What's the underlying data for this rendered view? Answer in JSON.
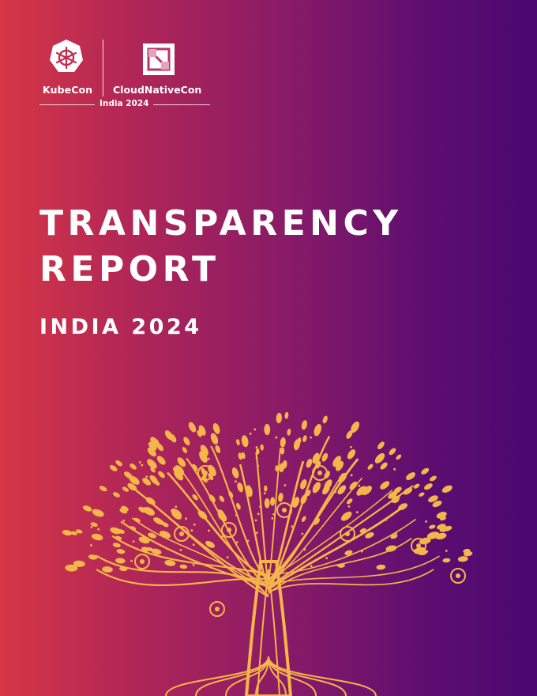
{
  "header": {
    "kubecon_label": "KubeCon",
    "cloudnativecon_label": "CloudNativeCon",
    "event_label": "India 2024"
  },
  "document": {
    "title_line1": "TRANSPARENCY",
    "title_line2": "REPORT",
    "subtitle": "INDIA 2024"
  },
  "colors": {
    "gradient_left": "#d63645",
    "gradient_right": "#4a0870",
    "tree_gold": "#f4b54a"
  },
  "icons": {
    "kubecon": "kubernetes-helm-wheel-icon",
    "cloudnativecon": "cncf-square-icon",
    "illustration": "ornate-tree-illustration"
  }
}
